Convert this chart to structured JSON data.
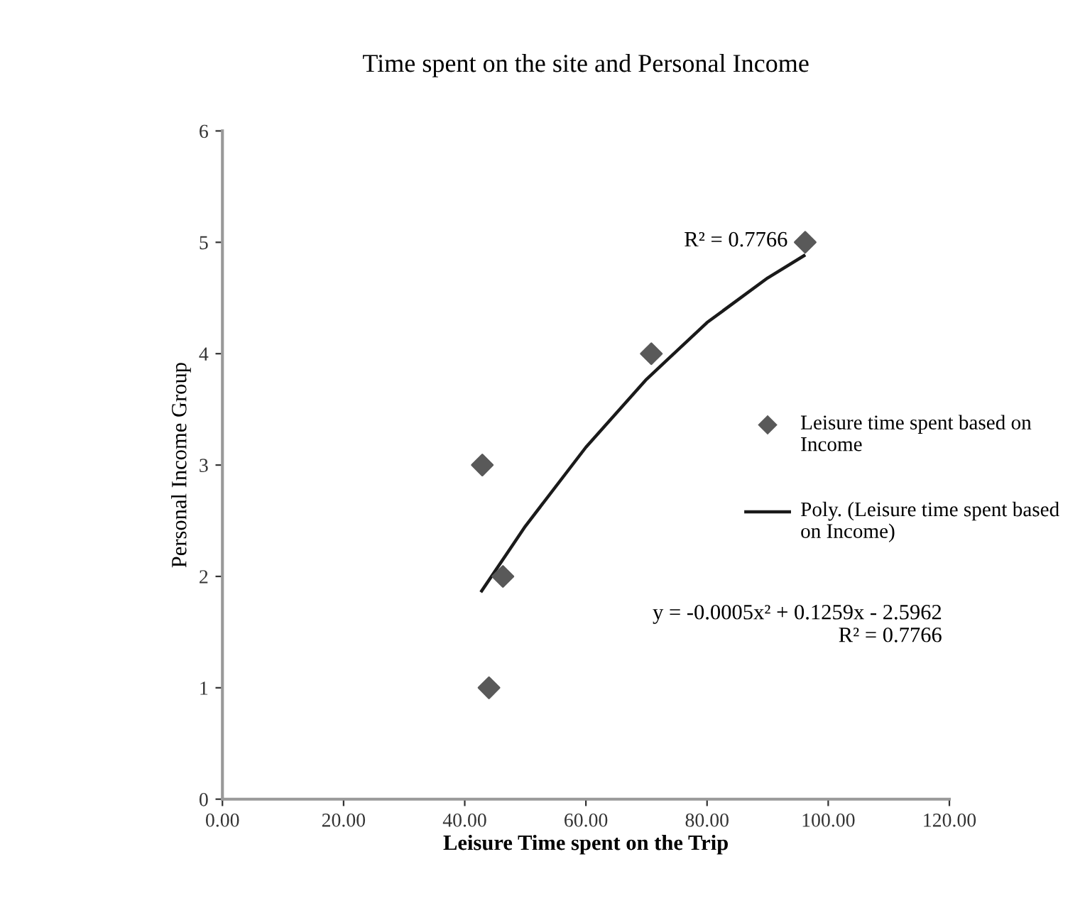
{
  "chart_data": {
    "type": "scatter",
    "title": "Time spent on the site and Personal Income",
    "xlabel": "Leisure Time spent on the Trip",
    "ylabel": "Personal Income Group",
    "series": [
      {
        "name": "Leisure time spent based on Income",
        "color": "#595959",
        "marker": "diamond",
        "x": [
          42.9,
          44.0,
          46.3,
          70.8,
          96.2
        ],
        "values": [
          3,
          1,
          2,
          4,
          5
        ]
      },
      {
        "name": "Poly. (Leisure time spent based on Income)",
        "type": "line",
        "color": "#1a1a1a",
        "marker": "none",
        "line_style": "solid",
        "x": [
          42.8,
          50,
          60,
          70,
          80,
          90,
          96
        ],
        "values": [
          1.87,
          2.45,
          3.16,
          3.77,
          4.28,
          4.68,
          4.88
        ]
      }
    ],
    "xlim": [
      0,
      120
    ],
    "ylim": [
      0,
      6
    ],
    "xticks": [
      {
        "value": 0,
        "label": "0.00"
      },
      {
        "value": 20,
        "label": "20.00"
      },
      {
        "value": 40,
        "label": "40.00"
      },
      {
        "value": 60,
        "label": "60.00"
      },
      {
        "value": 80,
        "label": "80.00"
      },
      {
        "value": 100,
        "label": "100.00"
      },
      {
        "value": 120,
        "label": "120.00"
      }
    ],
    "yticks": [
      0,
      1,
      2,
      3,
      4,
      5,
      6
    ],
    "grid": false,
    "legend": "right",
    "annotations": [
      "R² = 0.7766",
      "y = -0.0005x² + 0.1259x - 2.5962\nR² = 0.7766"
    ]
  }
}
